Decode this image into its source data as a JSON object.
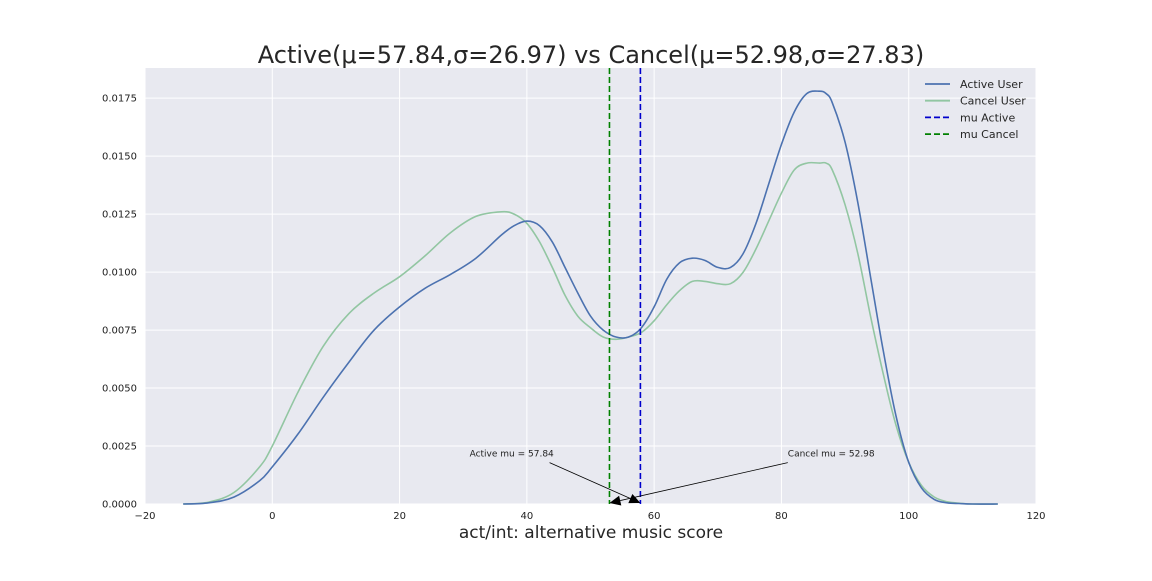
{
  "chart_data": {
    "type": "line",
    "title": "Active(μ=57.84,σ=26.97) vs Cancel(μ=52.98,σ=27.83)",
    "xlabel": "act/int: alternative music score",
    "ylabel": "",
    "xlim": [
      -20,
      120
    ],
    "ylim": [
      0,
      0.0188
    ],
    "xticks": [
      -20,
      0,
      20,
      40,
      60,
      80,
      100,
      120
    ],
    "xtick_labels": [
      "−20",
      "0",
      "20",
      "40",
      "60",
      "80",
      "100",
      "120"
    ],
    "yticks": [
      0,
      0.0025,
      0.005,
      0.0075,
      0.01,
      0.0125,
      0.015,
      0.0175
    ],
    "ytick_labels": [
      "0.0000",
      "0.0025",
      "0.0050",
      "0.0075",
      "0.0100",
      "0.0125",
      "0.0150",
      "0.0175"
    ],
    "grid": true,
    "background": "#e8e9f0",
    "legend_position": "top-right",
    "series": [
      {
        "name": "Active User",
        "color": "#4c72b0",
        "style": "solid",
        "x": [
          -14,
          -10,
          -6,
          -2,
          0,
          4,
          8,
          12,
          16,
          20,
          24,
          28,
          32,
          36,
          38,
          40,
          42,
          44,
          46,
          48,
          50,
          52,
          54,
          56,
          58,
          60,
          62,
          64,
          66,
          68,
          70,
          72,
          74,
          76,
          78,
          80,
          82,
          84,
          86,
          87,
          88,
          90,
          92,
          94,
          96,
          98,
          100,
          102,
          104,
          106,
          108,
          110,
          114
        ],
        "y": [
          0,
          5e-05,
          0.0003,
          0.001,
          0.0016,
          0.003,
          0.0046,
          0.0061,
          0.0075,
          0.0085,
          0.0093,
          0.0099,
          0.0106,
          0.0116,
          0.012,
          0.0122,
          0.012,
          0.0113,
          0.0102,
          0.0091,
          0.0081,
          0.0075,
          0.0072,
          0.0072,
          0.0076,
          0.0085,
          0.0097,
          0.0104,
          0.0106,
          0.0105,
          0.0102,
          0.0102,
          0.0108,
          0.0121,
          0.0138,
          0.0155,
          0.0169,
          0.0177,
          0.0178,
          0.0177,
          0.0173,
          0.0156,
          0.013,
          0.0098,
          0.0066,
          0.0038,
          0.0018,
          0.0007,
          0.0002,
          5e-05,
          2e-05,
          0,
          0
        ]
      },
      {
        "name": "Cancel User",
        "color": "#92c6a2",
        "style": "solid",
        "x": [
          -14,
          -10,
          -6,
          -2,
          0,
          4,
          8,
          12,
          16,
          20,
          24,
          28,
          32,
          36,
          38,
          40,
          42,
          44,
          46,
          48,
          50,
          52,
          54,
          56,
          58,
          60,
          62,
          64,
          66,
          68,
          70,
          72,
          74,
          76,
          78,
          80,
          82,
          84,
          86,
          87,
          88,
          90,
          92,
          94,
          96,
          98,
          100,
          102,
          104,
          106,
          108,
          110,
          114
        ],
        "y": [
          0,
          8e-05,
          0.0005,
          0.0016,
          0.0025,
          0.0048,
          0.0068,
          0.0082,
          0.0091,
          0.0098,
          0.0107,
          0.0117,
          0.0124,
          0.0126,
          0.0125,
          0.0121,
          0.0113,
          0.0102,
          0.009,
          0.0081,
          0.0076,
          0.0072,
          0.0071,
          0.0072,
          0.0074,
          0.0079,
          0.0086,
          0.0092,
          0.0096,
          0.0096,
          0.0095,
          0.0095,
          0.01,
          0.011,
          0.0122,
          0.0134,
          0.0144,
          0.0147,
          0.0147,
          0.0147,
          0.0144,
          0.0129,
          0.0108,
          0.0081,
          0.0056,
          0.0034,
          0.0018,
          0.0008,
          0.0003,
          0.0001,
          3e-05,
          0,
          0
        ]
      }
    ],
    "vlines": [
      {
        "name": "mu Active",
        "x": 57.84,
        "color": "#0000cc",
        "style": "dashed"
      },
      {
        "name": "mu Cancel",
        "x": 52.98,
        "color": "#008000",
        "style": "dashed"
      }
    ],
    "annotations": [
      {
        "text": "Active mu = 57.84",
        "xy": [
          57.84,
          0
        ],
        "xytext": [
          31,
          0.002
        ]
      },
      {
        "text": "Cancel mu = 52.98",
        "xy": [
          52.98,
          0
        ],
        "xytext": [
          81,
          0.002
        ]
      }
    ]
  }
}
